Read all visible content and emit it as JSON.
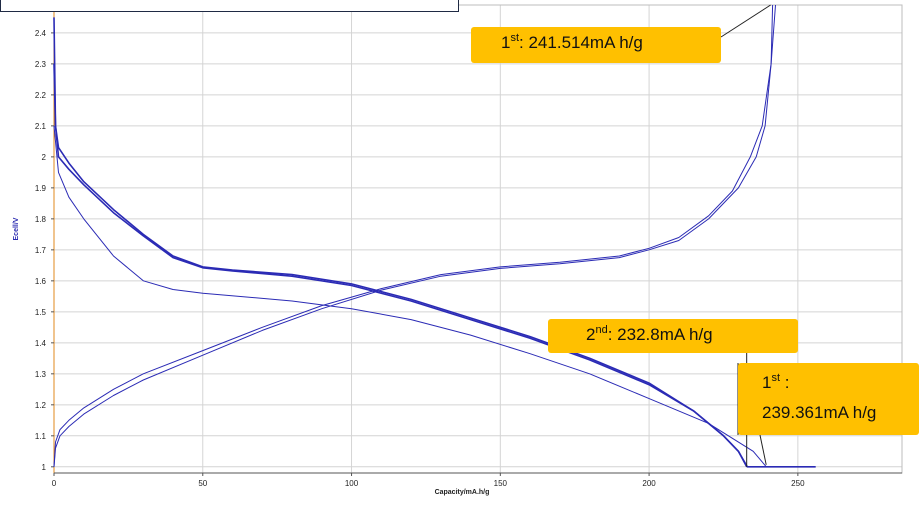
{
  "chart_data": {
    "type": "line",
    "xlabel": "Capacity/mA.h/g",
    "ylabel": "Ecell/V",
    "xlim": [
      0,
      285
    ],
    "ylim": [
      0.98,
      2.49
    ],
    "x_ticks": [
      0,
      50,
      100,
      150,
      200,
      250
    ],
    "y_ticks": [
      1,
      1.1,
      1.2,
      1.3,
      1.4,
      1.5,
      1.6,
      1.7,
      1.8,
      1.9,
      2,
      2.1,
      2.2,
      2.3,
      2.4
    ],
    "y_tick_labels": [
      "1",
      "1.1",
      "1.2",
      "1.3",
      "1.4",
      "1.5",
      "1.6",
      "1.7",
      "1.8",
      "1.9",
      "2",
      "2.1",
      "2.2",
      "2.3",
      "2.4"
    ],
    "grid": true,
    "series_color": "#2b2bb5",
    "series": [
      {
        "points": [
          [
            0,
            2.45
          ],
          [
            0.5,
            2.1
          ],
          [
            1.5,
            2.03
          ],
          [
            5,
            1.98
          ],
          [
            10,
            1.92
          ],
          [
            20,
            1.83
          ],
          [
            30,
            1.75
          ],
          [
            40,
            1.68
          ],
          [
            50,
            1.645
          ],
          [
            60,
            1.635
          ],
          [
            80,
            1.62
          ],
          [
            100,
            1.59
          ],
          [
            120,
            1.54
          ],
          [
            140,
            1.48
          ],
          [
            160,
            1.42
          ],
          [
            180,
            1.35
          ],
          [
            200,
            1.27
          ],
          [
            215,
            1.18
          ],
          [
            225,
            1.1
          ],
          [
            230,
            1.05
          ],
          [
            233,
            1.0
          ],
          [
            256,
            1.0
          ]
        ]
      },
      {
        "points": [
          [
            0,
            2.3
          ],
          [
            0.5,
            2.1
          ],
          [
            1.5,
            2.0
          ],
          [
            5,
            1.96
          ],
          [
            10,
            1.91
          ],
          [
            20,
            1.82
          ],
          [
            30,
            1.745
          ],
          [
            40,
            1.675
          ],
          [
            50,
            1.642
          ],
          [
            60,
            1.632
          ],
          [
            80,
            1.615
          ],
          [
            100,
            1.585
          ],
          [
            120,
            1.535
          ],
          [
            140,
            1.475
          ],
          [
            160,
            1.415
          ],
          [
            180,
            1.345
          ],
          [
            200,
            1.265
          ],
          [
            215,
            1.18
          ],
          [
            225,
            1.1
          ],
          [
            230,
            1.05
          ],
          [
            232.8,
            1.0
          ]
        ]
      },
      {
        "points": [
          [
            0,
            2.1
          ],
          [
            1.5,
            1.95
          ],
          [
            5,
            1.87
          ],
          [
            10,
            1.8
          ],
          [
            20,
            1.68
          ],
          [
            30,
            1.6
          ],
          [
            40,
            1.572
          ],
          [
            50,
            1.56
          ],
          [
            80,
            1.535
          ],
          [
            100,
            1.51
          ],
          [
            120,
            1.475
          ],
          [
            140,
            1.425
          ],
          [
            160,
            1.365
          ],
          [
            180,
            1.3
          ],
          [
            200,
            1.22
          ],
          [
            220,
            1.14
          ],
          [
            235,
            1.05
          ],
          [
            239.4,
            1.0
          ]
        ]
      },
      {
        "points": [
          [
            0,
            1.0
          ],
          [
            0.5,
            1.06
          ],
          [
            2,
            1.1
          ],
          [
            5,
            1.13
          ],
          [
            10,
            1.17
          ],
          [
            20,
            1.23
          ],
          [
            30,
            1.28
          ],
          [
            50,
            1.36
          ],
          [
            70,
            1.44
          ],
          [
            90,
            1.51
          ],
          [
            110,
            1.57
          ],
          [
            130,
            1.615
          ],
          [
            150,
            1.64
          ],
          [
            170,
            1.655
          ],
          [
            190,
            1.675
          ],
          [
            200,
            1.7
          ],
          [
            210,
            1.73
          ],
          [
            220,
            1.8
          ],
          [
            230,
            1.9
          ],
          [
            236,
            2.0
          ],
          [
            239,
            2.1
          ],
          [
            241,
            2.3
          ],
          [
            241.5,
            2.49
          ]
        ]
      },
      {
        "points": [
          [
            0,
            1.0
          ],
          [
            0.5,
            1.08
          ],
          [
            2,
            1.12
          ],
          [
            5,
            1.15
          ],
          [
            10,
            1.19
          ],
          [
            20,
            1.25
          ],
          [
            30,
            1.3
          ],
          [
            50,
            1.375
          ],
          [
            70,
            1.45
          ],
          [
            90,
            1.52
          ],
          [
            110,
            1.575
          ],
          [
            130,
            1.62
          ],
          [
            150,
            1.645
          ],
          [
            170,
            1.66
          ],
          [
            190,
            1.68
          ],
          [
            200,
            1.705
          ],
          [
            210,
            1.74
          ],
          [
            220,
            1.81
          ],
          [
            228,
            1.89
          ],
          [
            234,
            2.0
          ],
          [
            238,
            2.1
          ],
          [
            241,
            2.3
          ],
          [
            242.5,
            2.49
          ]
        ]
      }
    ],
    "annotations": [
      {
        "ordinal": "1",
        "suffix": "st",
        "rest": ": 241.514mA h/g",
        "target_x": 241.514,
        "target_y": 2.49
      },
      {
        "ordinal": "2",
        "suffix": "nd",
        "rest": ": 232.8mA h/g",
        "target_x": 232.8,
        "target_y": 1.0
      },
      {
        "ordinal": "1",
        "suffix": "st",
        "line1_rest": " :",
        "line2": "239.361mA h/g",
        "target_x": 239.361,
        "target_y": 1.0
      }
    ]
  }
}
